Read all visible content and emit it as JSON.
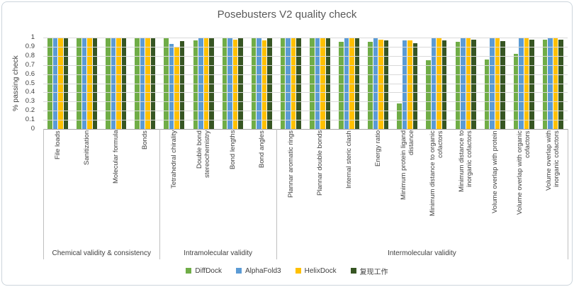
{
  "window": {
    "border_color": "#ccd5dc",
    "background": "#ffffff"
  },
  "colors": {
    "title_text": "#595959",
    "label_text": "#404040",
    "gridline": "#d9d9d9",
    "axis_line": "#a6a6a6",
    "divider_line": "#bfbfbf"
  },
  "chart_data": {
    "type": "bar",
    "title": "Posebusters V2 quality check",
    "xlabel": "",
    "ylabel": "% passing check",
    "ylim": [
      0,
      1
    ],
    "ytick_labels": [
      "1",
      "0.9",
      "0.8",
      "0.7",
      "0.6",
      "0.5",
      "0.4",
      "0.3",
      "0.2",
      "0.1",
      "0"
    ],
    "grid": true,
    "legend_position": "bottom",
    "sections": [
      {
        "label": "Chemical validity & consistency",
        "group_count": 4
      },
      {
        "label": "Intramolecular validity",
        "group_count": 4
      },
      {
        "label": "Intermolecular validity",
        "group_count": 10
      }
    ],
    "categories": [
      "File loads",
      "Sanitization",
      "Molecular formula",
      "Bonds",
      "Tetrahedral chirality",
      "Double bond\nstereochemistry",
      "Bond lengths",
      "Bond angles",
      "Plannar aromatic rings",
      "Plannar double bonds",
      "Internal steric clash",
      "Energy ratio",
      "Minimum protein ligand\ndistance",
      "Minimum distance to organic\ncofactors",
      "Minimum distance to\ninorganic cofactors",
      "Volume overlap with protein",
      "Volume overlap with organic\ncofactors",
      "Volume overlap with\ninorganic cofactors"
    ],
    "series": [
      {
        "name": "DiffDock",
        "color": "#70AD47",
        "values": [
          1.0,
          1.0,
          1.0,
          1.0,
          0.99,
          0.97,
          0.99,
          0.99,
          0.99,
          1.0,
          0.95,
          0.95,
          0.28,
          0.75,
          0.95,
          0.76,
          0.82,
          0.98
        ]
      },
      {
        "name": "AlphaFold3",
        "color": "#5B9BD5",
        "values": [
          1.0,
          1.0,
          1.0,
          1.0,
          0.93,
          1.0,
          0.99,
          0.99,
          1.0,
          0.99,
          1.0,
          1.0,
          0.97,
          0.99,
          0.99,
          1.0,
          1.0,
          1.0
        ]
      },
      {
        "name": "HelixDock",
        "color": "#FFC000",
        "values": [
          1.0,
          1.0,
          1.0,
          1.0,
          0.89,
          0.99,
          0.98,
          0.97,
          1.0,
          0.99,
          0.99,
          0.98,
          0.97,
          0.99,
          0.99,
          1.0,
          1.0,
          1.0
        ]
      },
      {
        "name": "复现工作",
        "color": "#375623",
        "values": [
          1.0,
          1.0,
          1.0,
          1.0,
          0.96,
          1.0,
          0.99,
          1.0,
          0.99,
          0.99,
          0.99,
          0.97,
          0.94,
          0.97,
          0.98,
          0.96,
          0.98,
          0.98
        ]
      }
    ]
  }
}
